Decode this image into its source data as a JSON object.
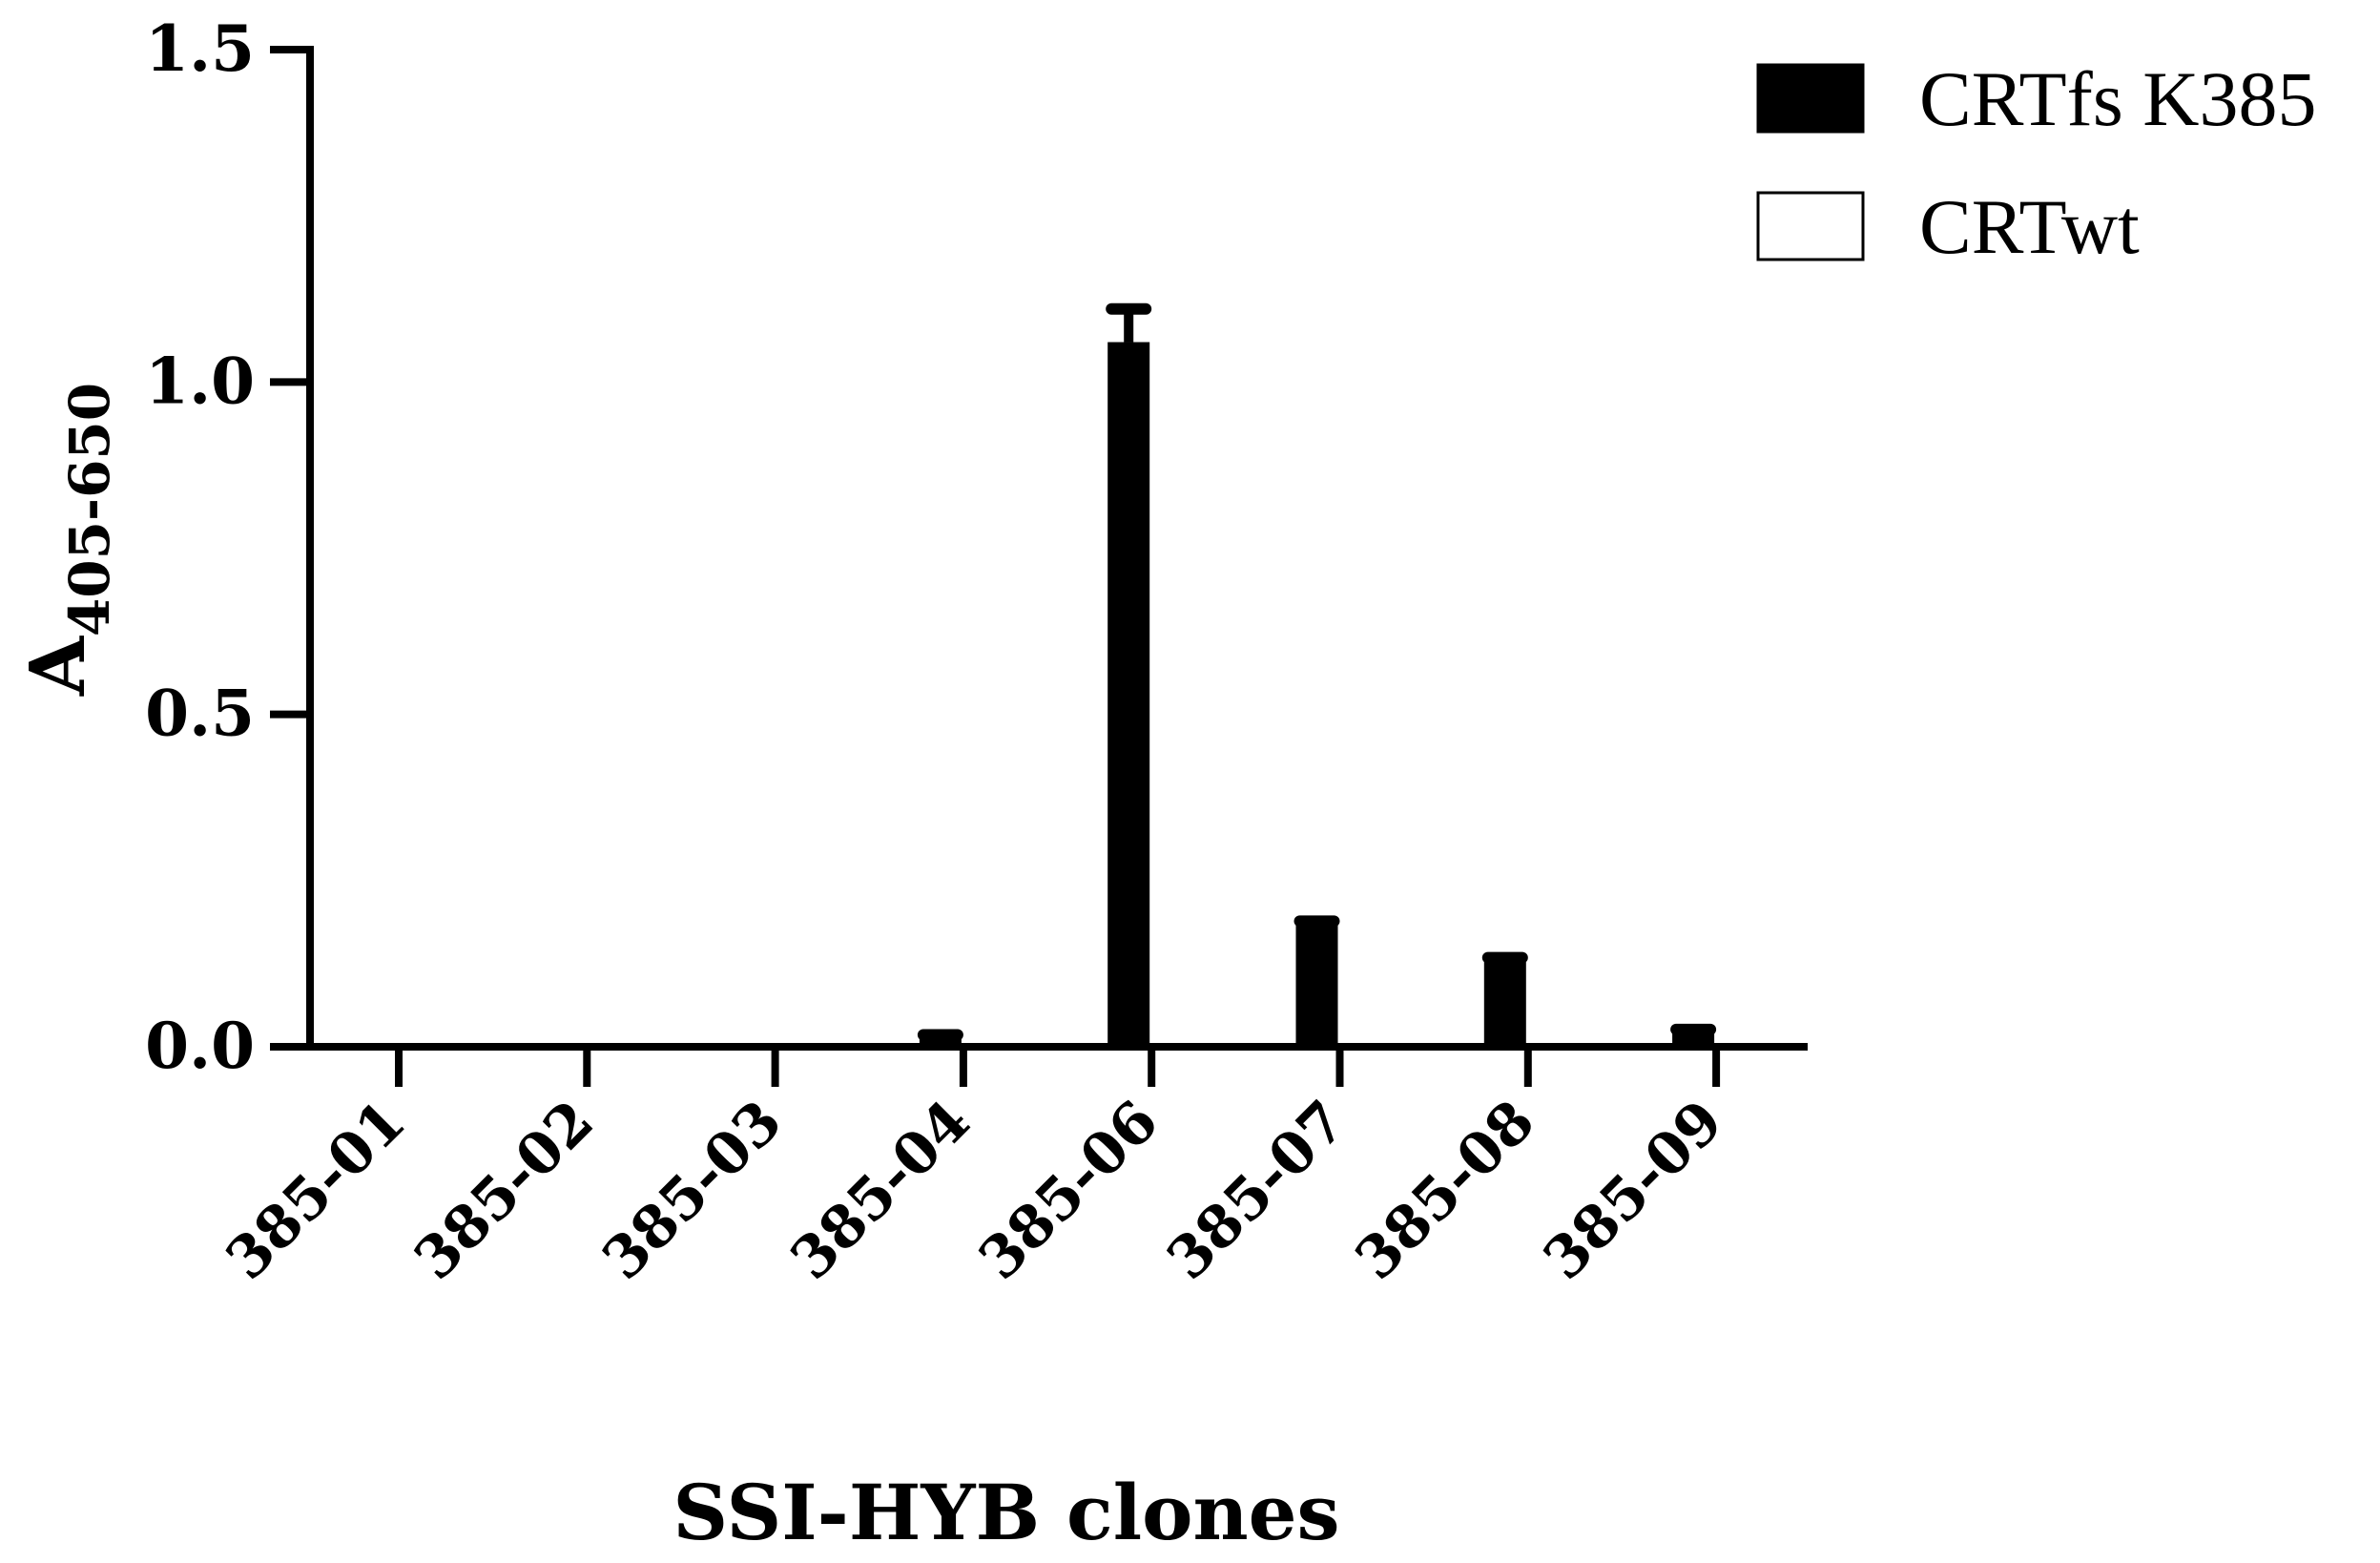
{
  "chart_data": {
    "type": "bar",
    "title": "",
    "xlabel": "SSI-HYB clones",
    "ylabel": {
      "main": "A",
      "subscript": "405-650"
    },
    "ylim": [
      0,
      1.5
    ],
    "yticks": [
      "0.0",
      "0.5",
      "1.0",
      "1.5"
    ],
    "categories": [
      "385-01",
      "385-02",
      "385-03",
      "385-04",
      "385-06",
      "385-07",
      "385-08",
      "385-09"
    ],
    "series": [
      {
        "name": "CRTfs K385",
        "color": "#000000",
        "values": [
          0.0,
          0.0,
          0.0,
          0.015,
          1.06,
          0.185,
          0.13,
          0.022
        ],
        "errors": [
          0.0,
          0.0,
          0.0,
          0.003,
          0.05,
          0.004,
          0.004,
          0.004
        ]
      },
      {
        "name": "CRTwt",
        "color": "#ffffff",
        "values": [
          0.0,
          0.0,
          0.0,
          0.0,
          0.0,
          0.0,
          0.0,
          0.003
        ],
        "errors": [
          0.0,
          0.0,
          0.0,
          0.0,
          0.0,
          0.0,
          0.0,
          0.0
        ]
      }
    ],
    "legend_position": "top-right",
    "grid": false
  }
}
